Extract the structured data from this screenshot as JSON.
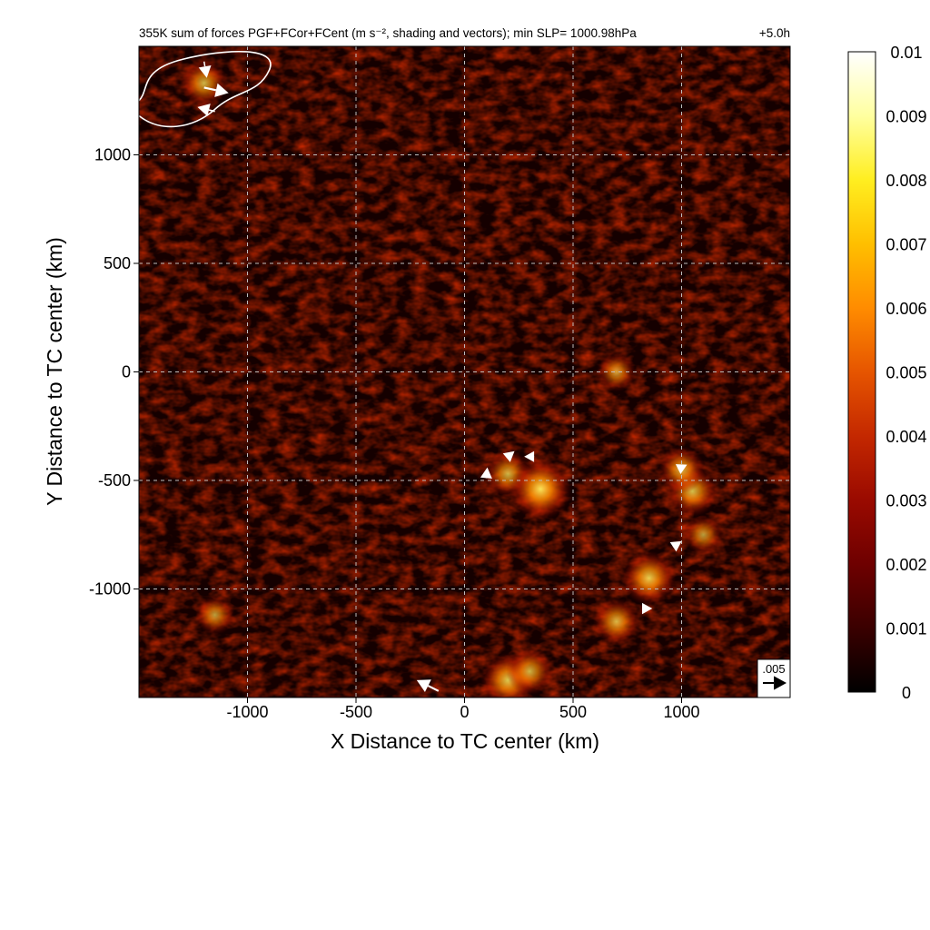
{
  "chart_data": {
    "type": "heatmap",
    "title": "355K sum of forces PGF+FCor+FCent (m s⁻², shading and vectors); min SLP= 1000.98hPa",
    "time_label": "+5.0h",
    "xlabel": "X Distance to TC center (km)",
    "ylabel": "Y Distance to TC center (km)",
    "xlim": [
      -1500,
      1500
    ],
    "ylim": [
      -1500,
      1500
    ],
    "x_ticks": [
      -1000,
      -500,
      0,
      500,
      1000
    ],
    "y_ticks": [
      -1000,
      -500,
      0,
      500,
      1000
    ],
    "x_tick_labels": [
      "-1000",
      "-500",
      "0",
      "500",
      "1000"
    ],
    "y_tick_labels": [
      "-1000",
      "-500",
      "0",
      "500",
      "1000"
    ],
    "grid": true,
    "colorbar": {
      "min": 0,
      "max": 0.01,
      "tick_labels": [
        "0.01",
        "0.009",
        "0.008",
        "0.007",
        "0.006",
        "0.005",
        "0.004",
        "0.003",
        "0.002",
        "0.001",
        "0"
      ],
      "colors": [
        "#000000",
        "#3a0000",
        "#6e0000",
        "#9a0a00",
        "#c42800",
        "#e65500",
        "#ff8c00",
        "#ffbf00",
        "#ffee20",
        "#ffffa0",
        "#ffffff"
      ]
    },
    "reference_vector": {
      "value": 0.005,
      "label": ".005"
    },
    "bright_regions": [
      {
        "x": 200,
        "y": -470,
        "value": 0.004
      },
      {
        "x": 350,
        "y": -540,
        "value": 0.006
      },
      {
        "x": 1050,
        "y": -550,
        "value": 0.0045
      },
      {
        "x": 1000,
        "y": -450,
        "value": 0.004
      },
      {
        "x": 850,
        "y": -950,
        "value": 0.005
      },
      {
        "x": 700,
        "y": -1150,
        "value": 0.004
      },
      {
        "x": 1100,
        "y": -750,
        "value": 0.003
      },
      {
        "x": -1200,
        "y": 1330,
        "value": 0.004
      },
      {
        "x": 200,
        "y": -1420,
        "value": 0.005
      },
      {
        "x": 300,
        "y": -1380,
        "value": 0.004
      },
      {
        "x": -1150,
        "y": -1120,
        "value": 0.003
      },
      {
        "x": 700,
        "y": 0,
        "value": 0.003
      }
    ],
    "vectors": [
      {
        "x": -1200,
        "y": 1310,
        "u": 0.0045,
        "v": -0.001
      },
      {
        "x": -1150,
        "y": 1200,
        "u": -0.0032,
        "v": 0.0008
      },
      {
        "x": -1200,
        "y": 1430,
        "u": 0.0005,
        "v": -0.003
      },
      {
        "x": -120,
        "y": -1470,
        "u": -0.004,
        "v": 0.002
      },
      {
        "x": 100,
        "y": -490,
        "u": 0.0002,
        "v": 0.002
      },
      {
        "x": 200,
        "y": -390,
        "u": 0.0012,
        "v": 0.001
      },
      {
        "x": 300,
        "y": -390,
        "u": -0.001,
        "v": 0.0
      },
      {
        "x": 830,
        "y": -1090,
        "u": 0.0014,
        "v": 0.0
      },
      {
        "x": 970,
        "y": -800,
        "u": 0.0012,
        "v": 0.0008
      },
      {
        "x": 1000,
        "y": -440,
        "u": 0.001,
        "v": 0.0005
      }
    ],
    "contour_color": "#ffffff"
  }
}
